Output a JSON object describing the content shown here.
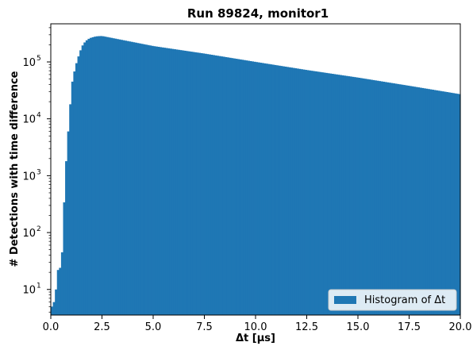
{
  "chart_data": {
    "type": "bar",
    "title": "Run 89824, monitor1",
    "xlabel": "Δt [μs]",
    "ylabel": "# Detections with time difference",
    "xlim": [
      0,
      20
    ],
    "ylim_log10": [
      0.55,
      5.67
    ],
    "yscale": "log",
    "grid": false,
    "legend_placement": "lower-right",
    "series": [
      {
        "name": "Histogram of Δt",
        "color": "#1f77b4"
      }
    ],
    "x_ticks": [
      "0.0",
      "2.5",
      "5.0",
      "7.5",
      "10.0",
      "12.5",
      "15.0",
      "17.5",
      "20.0"
    ],
    "x_tick_values": [
      0,
      2.5,
      5,
      7.5,
      10,
      12.5,
      15,
      17.5,
      20
    ],
    "y_ticks": [
      {
        "base": "10",
        "exp": "1",
        "value": 10
      },
      {
        "base": "10",
        "exp": "2",
        "value": 100
      },
      {
        "base": "10",
        "exp": "3",
        "value": 1000
      },
      {
        "base": "10",
        "exp": "4",
        "value": 10000
      },
      {
        "base": "10",
        "exp": "5",
        "value": 100000
      }
    ],
    "bin_width": 0.1,
    "bins": {
      "x_start": [
        0.0,
        0.1,
        0.2,
        0.3,
        0.4,
        0.5,
        0.6,
        0.7,
        0.8,
        0.9,
        1.0,
        1.1,
        1.2,
        1.3,
        1.4,
        1.5,
        1.6,
        1.7,
        1.8,
        1.9,
        2.0,
        2.1,
        2.2,
        2.3,
        2.4
      ],
      "counts": [
        5,
        6,
        10,
        22,
        24,
        45,
        340,
        1800,
        6000,
        18000,
        45000,
        68000,
        95000,
        125000,
        160000,
        195000,
        220000,
        240000,
        255000,
        265000,
        272000,
        278000,
        282000,
        284000,
        285000
      ]
    },
    "decay_tail": {
      "x": [
        2.5,
        5,
        7.5,
        10,
        12.5,
        15,
        17.5,
        20
      ],
      "counts": [
        285000,
        190000,
        140000,
        100000,
        72000,
        53000,
        38000,
        27000
      ]
    }
  }
}
